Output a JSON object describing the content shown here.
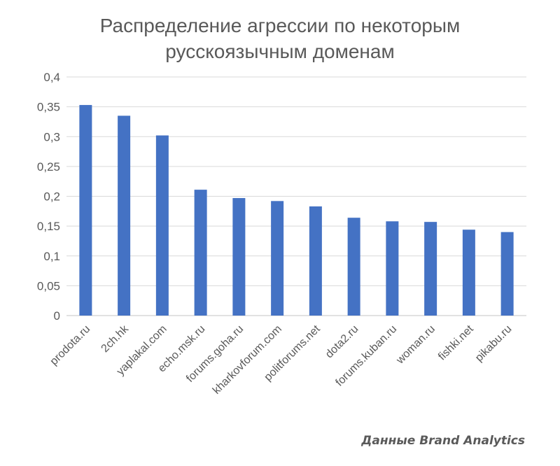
{
  "chart_data": {
    "type": "bar",
    "title_lines": [
      "Распределение агрессии по некоторым",
      "русскоязычным доменам"
    ],
    "categories": [
      "prodota.ru",
      "2ch.hk",
      "yaplakal.com",
      "echo.msk.ru",
      "forums.goha.ru",
      "kharkovforum.com",
      "politforums.net",
      "dota2.ru",
      "forums.kuban.ru",
      "woman.ru",
      "fishki.net",
      "pikabu.ru"
    ],
    "values": [
      0.353,
      0.335,
      0.302,
      0.211,
      0.197,
      0.192,
      0.183,
      0.164,
      0.158,
      0.157,
      0.144,
      0.14
    ],
    "yticks": [
      "0",
      "0,05",
      "0,1",
      "0,15",
      "0,2",
      "0,25",
      "0,3",
      "0,35",
      "0,4"
    ],
    "ylim": [
      0,
      0.4
    ],
    "grid": true,
    "legend": "none",
    "bar_color": "#4472c4",
    "grid_color": "#d9d9d9"
  },
  "source_note": "Данные Brand Analytics"
}
